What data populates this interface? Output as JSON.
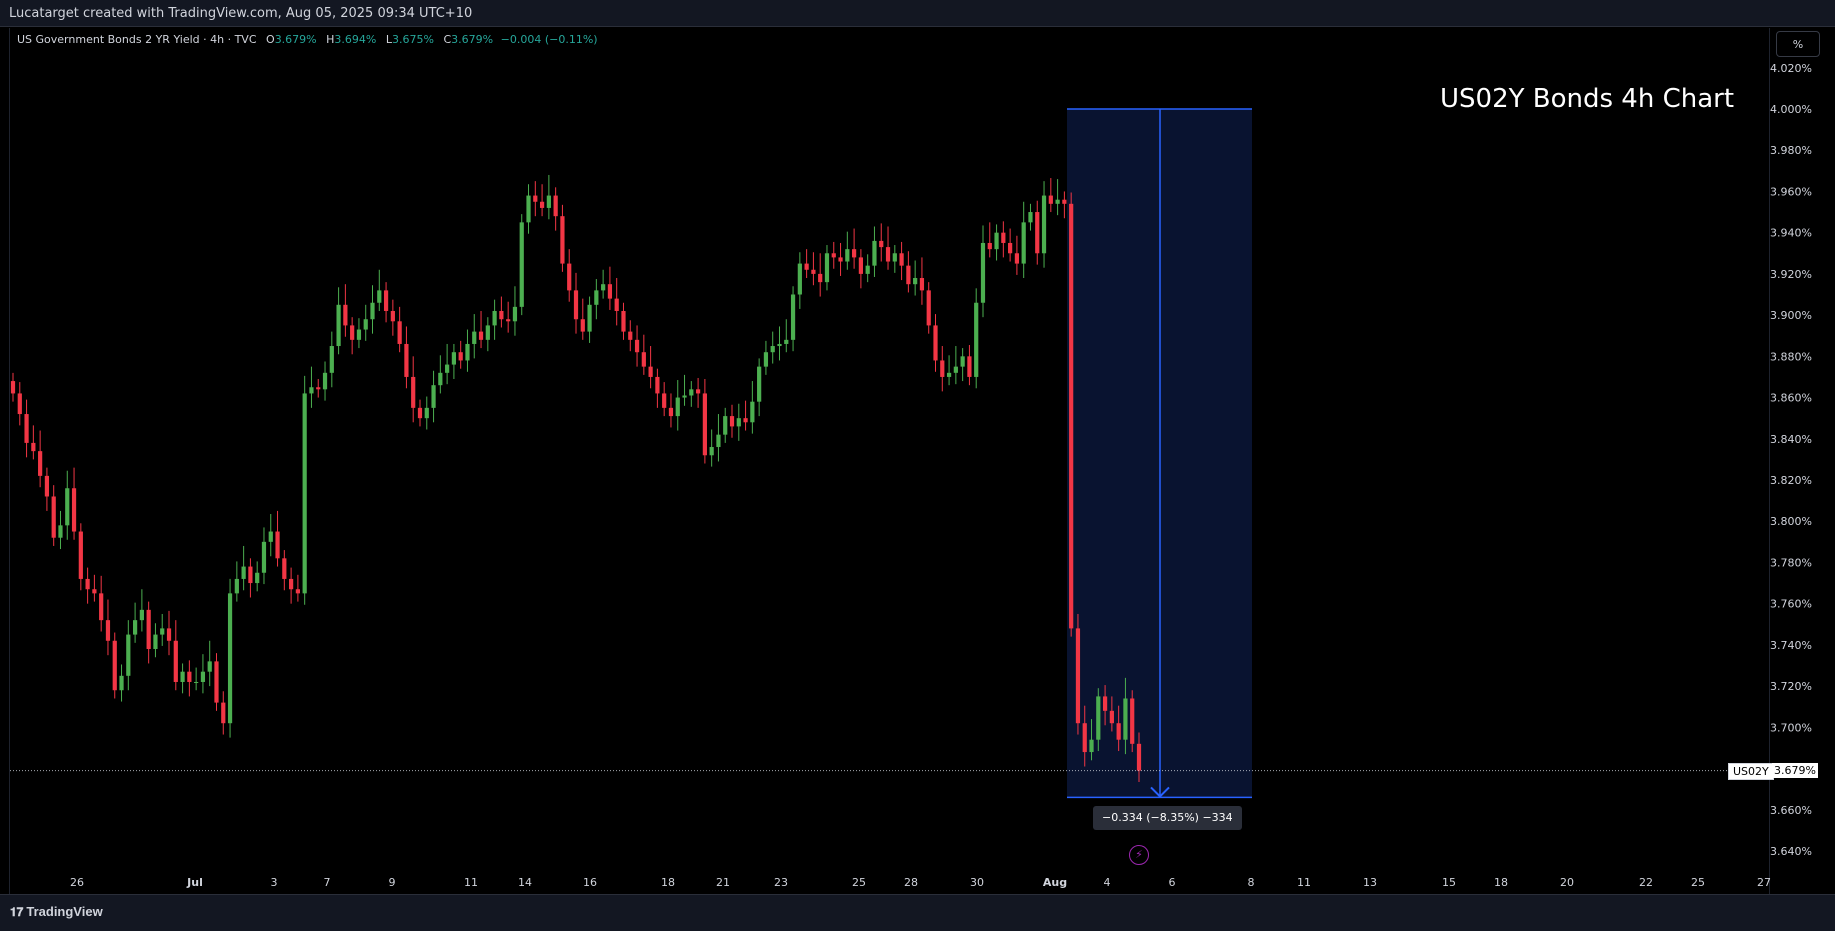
{
  "header": {
    "caption": "Lucatarget created with TradingView.com, Aug 05, 2025 09:34 UTC+10"
  },
  "legend": {
    "symbol": "US Government Bonds 2 YR Yield · 4h · TVC",
    "o_label": "O",
    "o_value": "3.679%",
    "h_label": "H",
    "h_value": "3.694%",
    "l_label": "L",
    "l_value": "3.675%",
    "c_label": "C",
    "c_value": "3.679%",
    "change": "−0.004 (−0.11%)"
  },
  "scale_button": "%",
  "annotation": {
    "title": "US02Y Bonds 4h Chart"
  },
  "measure": {
    "label": "−0.334 (−8.35%) −334"
  },
  "last_price": {
    "symbol": "US02Y",
    "value": "3.679%"
  },
  "footer": {
    "brand": "TradingView"
  },
  "colors": {
    "up": "#4caf50",
    "down": "#f23645",
    "measure_fill": "#0b1638",
    "measure_line": "#2962ff",
    "background": "#000000"
  },
  "chart_data": {
    "type": "candlestick",
    "title": "US02Y Bonds 4h Chart",
    "ylim": [
      3.63,
      4.03
    ],
    "y_ticks": [
      "4.020%",
      "4.000%",
      "3.980%",
      "3.960%",
      "3.940%",
      "3.920%",
      "3.900%",
      "3.880%",
      "3.860%",
      "3.840%",
      "3.820%",
      "3.800%",
      "3.780%",
      "3.760%",
      "3.740%",
      "3.720%",
      "3.700%",
      "3.680%",
      "3.660%",
      "3.640%"
    ],
    "x_ticks": [
      "26",
      "Jul",
      "3",
      "7",
      "9",
      "11",
      "14",
      "16",
      "18",
      "21",
      "23",
      "25",
      "28",
      "30",
      "Aug",
      "4",
      "6",
      "8",
      "11",
      "13",
      "15",
      "18",
      "20",
      "22",
      "25",
      "27"
    ],
    "closes": [
      3.862,
      3.852,
      3.838,
      3.834,
      3.822,
      3.812,
      3.792,
      3.798,
      3.816,
      3.795,
      3.772,
      3.767,
      3.765,
      3.752,
      3.742,
      3.718,
      3.725,
      3.745,
      3.752,
      3.757,
      3.738,
      3.745,
      3.748,
      3.742,
      3.722,
      3.727,
      3.722,
      3.722,
      3.727,
      3.732,
      3.712,
      3.702,
      3.765,
      3.772,
      3.778,
      3.77,
      3.775,
      3.79,
      3.795,
      3.782,
      3.772,
      3.767,
      3.765,
      3.862,
      3.865,
      3.864,
      3.872,
      3.885,
      3.905,
      3.895,
      3.888,
      3.893,
      3.898,
      3.906,
      3.912,
      3.902,
      3.897,
      3.886,
      3.87,
      3.855,
      3.85,
      3.855,
      3.866,
      3.872,
      3.876,
      3.882,
      3.878,
      3.886,
      3.892,
      3.888,
      3.895,
      3.902,
      3.898,
      3.897,
      3.904,
      3.945,
      3.958,
      3.955,
      3.952,
      3.958,
      3.948,
      3.925,
      3.912,
      3.898,
      3.892,
      3.905,
      3.912,
      3.915,
      3.908,
      3.902,
      3.892,
      3.888,
      3.882,
      3.875,
      3.87,
      3.862,
      3.855,
      3.851,
      3.86,
      3.861,
      3.864,
      3.862,
      3.832,
      3.836,
      3.842,
      3.851,
      3.846,
      3.85,
      3.848,
      3.858,
      3.875,
      3.882,
      3.885,
      3.886,
      3.888,
      3.91,
      3.925,
      3.922,
      3.92,
      3.916,
      3.93,
      3.928,
      3.926,
      3.932,
      3.928,
      3.92,
      3.924,
      3.936,
      3.933,
      3.926,
      3.93,
      3.924,
      3.915,
      3.918,
      3.912,
      3.895,
      3.878,
      3.87,
      3.872,
      3.875,
      3.88,
      3.87,
      3.906,
      3.935,
      3.932,
      3.94,
      3.935,
      3.93,
      3.925,
      3.945,
      3.95,
      3.93,
      3.958,
      3.954,
      3.956,
      3.954,
      3.748,
      3.702,
      3.688,
      3.694,
      3.715,
      3.708,
      3.702,
      3.694,
      3.714,
      3.692,
      3.679
    ],
    "measure": {
      "from": 4.0,
      "to": 3.666,
      "change": "−0.334 (−8.35%) −334"
    }
  }
}
